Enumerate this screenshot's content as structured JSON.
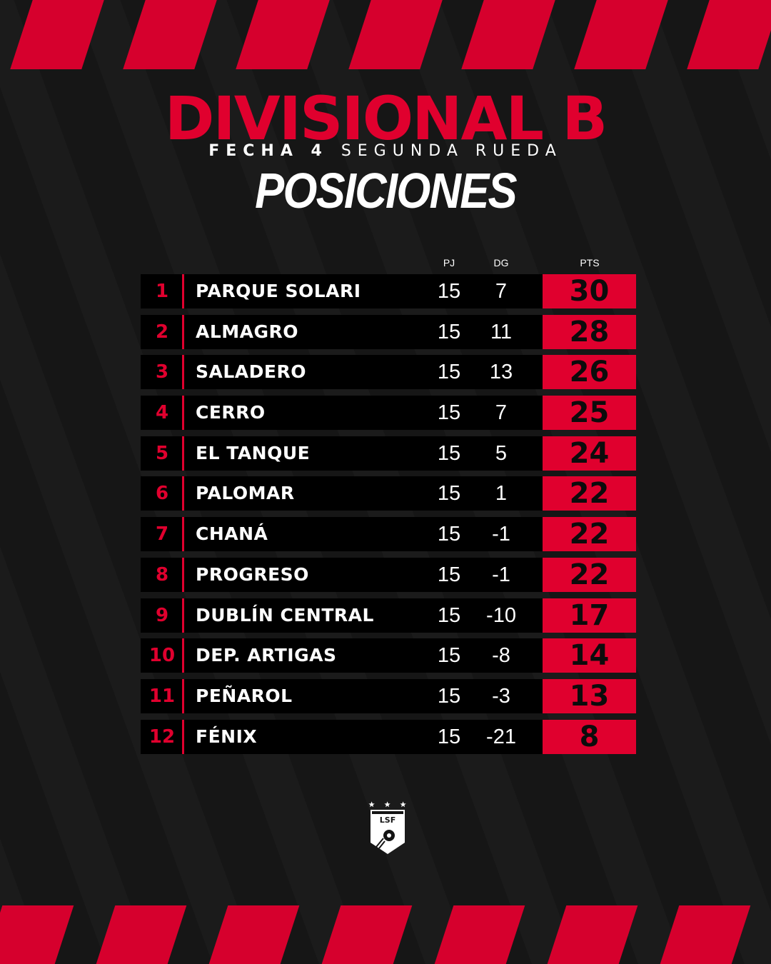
{
  "header": {
    "title": "DIVISIONAL B",
    "subtitle_bold": "FECHA 4",
    "subtitle_light": "SEGUNDA RUEDA",
    "heading": "POSICIONES"
  },
  "columns": {
    "pj": "PJ",
    "dg": "DG",
    "pts": "PTS"
  },
  "standings": [
    {
      "pos": "1",
      "team": "PARQUE SOLARI",
      "pj": "15",
      "dg": "7",
      "pts": "30"
    },
    {
      "pos": "2",
      "team": "ALMAGRO",
      "pj": "15",
      "dg": "11",
      "pts": "28"
    },
    {
      "pos": "3",
      "team": "SALADERO",
      "pj": "15",
      "dg": "13",
      "pts": "26"
    },
    {
      "pos": "4",
      "team": "CERRO",
      "pj": "15",
      "dg": "7",
      "pts": "25"
    },
    {
      "pos": "5",
      "team": "EL TANQUE",
      "pj": "15",
      "dg": "5",
      "pts": "24"
    },
    {
      "pos": "6",
      "team": "PALOMAR",
      "pj": "15",
      "dg": "1",
      "pts": "22"
    },
    {
      "pos": "7",
      "team": "CHANÁ",
      "pj": "15",
      "dg": "-1",
      "pts": "22"
    },
    {
      "pos": "8",
      "team": "PROGRESO",
      "pj": "15",
      "dg": "-1",
      "pts": "22"
    },
    {
      "pos": "9",
      "team": "DUBLÍN CENTRAL",
      "pj": "15",
      "dg": "-10",
      "pts": "17"
    },
    {
      "pos": "10",
      "team": "DEP. ARTIGAS",
      "pj": "15",
      "dg": "-8",
      "pts": "14"
    },
    {
      "pos": "11",
      "team": "PEÑAROL",
      "pj": "15",
      "dg": "-3",
      "pts": "13"
    },
    {
      "pos": "12",
      "team": "FÉNIX",
      "pj": "15",
      "dg": "-21",
      "pts": "8"
    }
  ],
  "logo": {
    "text": "LSF",
    "icon": "league-shield-icon"
  },
  "colors": {
    "accent": "#e0002e",
    "background": "#161616",
    "row": "#000000"
  }
}
